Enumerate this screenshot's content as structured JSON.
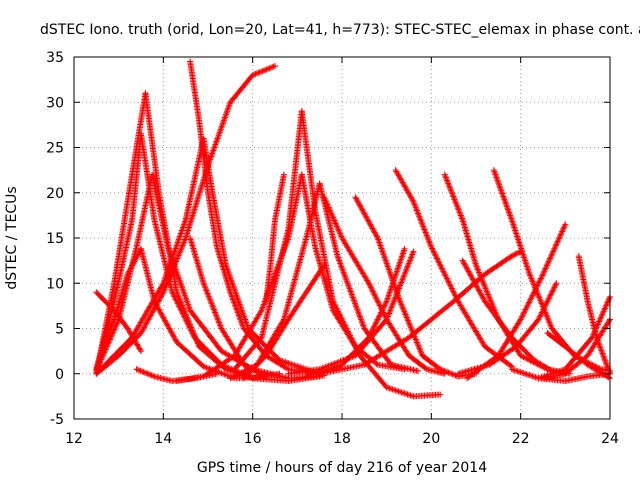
{
  "chart_data": {
    "type": "scatter",
    "title": "dSTEC Iono. truth (orid, Lon=20, Lat=41, h=773): STEC-STEC_elemax in phase cont. a",
    "xlabel": "GPS time / hours of day 216 of year 2014",
    "ylabel": "dSTEC  / TECUs",
    "xlim": [
      12,
      24
    ],
    "ylim": [
      -5,
      35
    ],
    "xticks": [
      "12",
      "14",
      "16",
      "18",
      "20",
      "22",
      "24"
    ],
    "yticks": [
      "-5",
      "0",
      "5",
      "10",
      "15",
      "20",
      "25",
      "30",
      "35"
    ],
    "grid": true,
    "legend": "none",
    "marker": "+",
    "color": "#ff0000",
    "series": [
      {
        "x": [
          12.5,
          12.9,
          13.3,
          13.6
        ],
        "y": [
          0,
          10,
          22,
          31
        ]
      },
      {
        "x": [
          13.6,
          13.9,
          14.3,
          14.8,
          15.4,
          16.0,
          16.6
        ],
        "y": [
          31,
          20,
          9,
          3,
          0.5,
          -0.5,
          0
        ]
      },
      {
        "x": [
          12.5,
          12.9,
          13.3,
          13.5
        ],
        "y": [
          0.5,
          8,
          17,
          26.5
        ]
      },
      {
        "x": [
          13.5,
          13.8,
          14.2,
          14.7,
          15.3,
          16.0,
          16.8,
          17.6
        ],
        "y": [
          26.5,
          17,
          9,
          4,
          1,
          -0.5,
          -0.8,
          -0.2
        ]
      },
      {
        "x": [
          12.5,
          13.0,
          13.4,
          13.75
        ],
        "y": [
          0.3,
          6,
          14,
          22
        ]
      },
      {
        "x": [
          13.75,
          14.1,
          14.6,
          15.3,
          16.0,
          16.8,
          17.5
        ],
        "y": [
          22,
          14,
          7,
          2.5,
          0.5,
          -0.5,
          -0.3
        ]
      },
      {
        "x": [
          12.5,
          12.9,
          13.2,
          13.5
        ],
        "y": [
          9,
          7,
          5,
          2.5
        ]
      },
      {
        "x": [
          12.5,
          12.9,
          13.2,
          13.5
        ],
        "y": [
          0.5,
          6,
          11,
          13.8
        ]
      },
      {
        "x": [
          13.5,
          13.8,
          14.3,
          14.9,
          15.6,
          16.3
        ],
        "y": [
          13.8,
          8,
          3.5,
          0.8,
          -0.5,
          -0.3
        ]
      },
      {
        "x": [
          12.5,
          13.0,
          13.5,
          14.0,
          14.5,
          15.0,
          15.5,
          16.0,
          16.5
        ],
        "y": [
          0,
          2,
          4.5,
          9,
          15,
          23,
          30,
          33,
          34
        ]
      },
      {
        "x": [
          14.6,
          14.8,
          15.0,
          15.2,
          15.5,
          15.8,
          16.3,
          16.8,
          17.4
        ],
        "y": [
          34.5,
          28,
          20,
          14,
          9,
          5,
          2,
          0.5,
          0
        ]
      },
      {
        "x": [
          12.6,
          13.3,
          14.0,
          14.5,
          14.9
        ],
        "y": [
          0.5,
          4,
          10,
          17,
          26
        ]
      },
      {
        "x": [
          14.9,
          15.1,
          15.4,
          15.9,
          16.6,
          17.5
        ],
        "y": [
          26,
          20,
          12,
          5,
          1.5,
          0
        ]
      },
      {
        "x": [
          13.4,
          13.8,
          14.2,
          14.7,
          15.2
        ],
        "y": [
          0.5,
          -0.3,
          -0.8,
          -0.5,
          0
        ]
      },
      {
        "x": [
          14.6,
          14.9,
          15.3,
          15.8,
          16.3
        ],
        "y": [
          15,
          10,
          5,
          1,
          -0.3
        ]
      },
      {
        "x": [
          14.3,
          14.9,
          15.6,
          16.2,
          16.8,
          17.1
        ],
        "y": [
          -0.8,
          -0.3,
          2,
          7,
          15,
          22
        ]
      },
      {
        "x": [
          17.1,
          17.4,
          17.8,
          18.3,
          18.8,
          19.4
        ],
        "y": [
          22,
          14,
          7,
          3,
          1,
          0.5
        ]
      },
      {
        "x": [
          15.6,
          16.2,
          16.8,
          17.1
        ],
        "y": [
          0.5,
          4,
          16,
          29
        ]
      },
      {
        "x": [
          17.1,
          17.4,
          17.8,
          18.4,
          19.0,
          19.6,
          20.2
        ],
        "y": [
          29,
          18,
          8,
          2,
          -1.5,
          -2.5,
          -2.3
        ]
      },
      {
        "x": [
          15.5,
          16.1,
          16.7,
          17.2,
          17.5
        ],
        "y": [
          -0.5,
          1,
          6,
          15,
          21
        ]
      },
      {
        "x": [
          17.5,
          17.9,
          18.5,
          19.1,
          19.7
        ],
        "y": [
          21,
          13,
          5,
          1,
          0.3
        ]
      },
      {
        "x": [
          15.8,
          16.3,
          16.8,
          17.2,
          17.6
        ],
        "y": [
          -0.5,
          2,
          6,
          9,
          12
        ]
      },
      {
        "x": [
          16.7,
          16.5,
          16.4,
          16.3
        ],
        "y": [
          22,
          17,
          12,
          8
        ]
      },
      {
        "x": [
          17.6,
          18.0,
          18.6,
          19.0,
          19.5,
          19.9,
          20.3
        ],
        "y": [
          19.5,
          15,
          10,
          6,
          2,
          0.5,
          0
        ]
      },
      {
        "x": [
          16.8,
          17.5,
          18.3,
          19.0,
          19.6
        ],
        "y": [
          0,
          0.5,
          2,
          6,
          13.5
        ]
      },
      {
        "x": [
          17.2,
          18.0,
          18.6,
          19.0,
          19.4
        ],
        "y": [
          -0.3,
          1,
          4,
          8,
          13.8
        ]
      },
      {
        "x": [
          18.3,
          18.8,
          19.3,
          19.8
        ],
        "y": [
          19.5,
          15,
          8,
          2
        ]
      },
      {
        "x": [
          19.8,
          20.2,
          20.6,
          21.0
        ],
        "y": [
          2,
          0.5,
          -0.3,
          0
        ]
      },
      {
        "x": [
          17.5,
          18.5,
          19.5,
          20.5,
          21.2,
          21.8,
          22.0
        ],
        "y": [
          0,
          1,
          4,
          8,
          11,
          13,
          13.5
        ]
      },
      {
        "x": [
          19.2,
          19.6,
          20.0,
          20.6,
          21.2,
          21.8
        ],
        "y": [
          22.5,
          19,
          14,
          8,
          3,
          0.8
        ]
      },
      {
        "x": [
          20.3,
          20.7,
          21.0,
          21.5,
          22.0,
          22.6,
          23.1
        ],
        "y": [
          22,
          17,
          12,
          6,
          2,
          0.5,
          0
        ]
      },
      {
        "x": [
          20.7,
          21.2,
          21.8,
          22.3,
          22.7,
          23.0
        ],
        "y": [
          12.5,
          8,
          4,
          1.5,
          0.3,
          0
        ]
      },
      {
        "x": [
          21.4,
          21.8,
          22.2,
          22.7,
          23.2,
          23.8,
          24.0
        ],
        "y": [
          22.5,
          17,
          11,
          5,
          2,
          0.5,
          0.3
        ]
      },
      {
        "x": [
          20.6,
          21.3,
          21.9,
          22.4,
          22.8
        ],
        "y": [
          0,
          1,
          3,
          6,
          10
        ]
      },
      {
        "x": [
          20.8,
          21.5,
          22.0,
          22.5,
          23.0
        ],
        "y": [
          -0.5,
          2,
          6,
          11,
          16.5
        ]
      },
      {
        "x": [
          21.8,
          22.4,
          23.0,
          23.6,
          24.0
        ],
        "y": [
          0.5,
          -0.5,
          0.5,
          4,
          8.5
        ]
      },
      {
        "x": [
          22.5,
          23.0,
          23.5,
          24.0
        ],
        "y": [
          -0.5,
          0,
          2,
          6
        ]
      },
      {
        "x": [
          23.3,
          23.5,
          23.7,
          24.0
        ],
        "y": [
          13,
          8,
          4,
          0
        ]
      },
      {
        "x": [
          22.6,
          23.0,
          23.5,
          24.0
        ],
        "y": [
          4.5,
          3,
          1,
          -0.5
        ]
      },
      {
        "x": [
          22.4,
          23.0,
          23.5,
          24.0
        ],
        "y": [
          -0.5,
          -0.8,
          -0.3,
          0
        ]
      }
    ]
  }
}
